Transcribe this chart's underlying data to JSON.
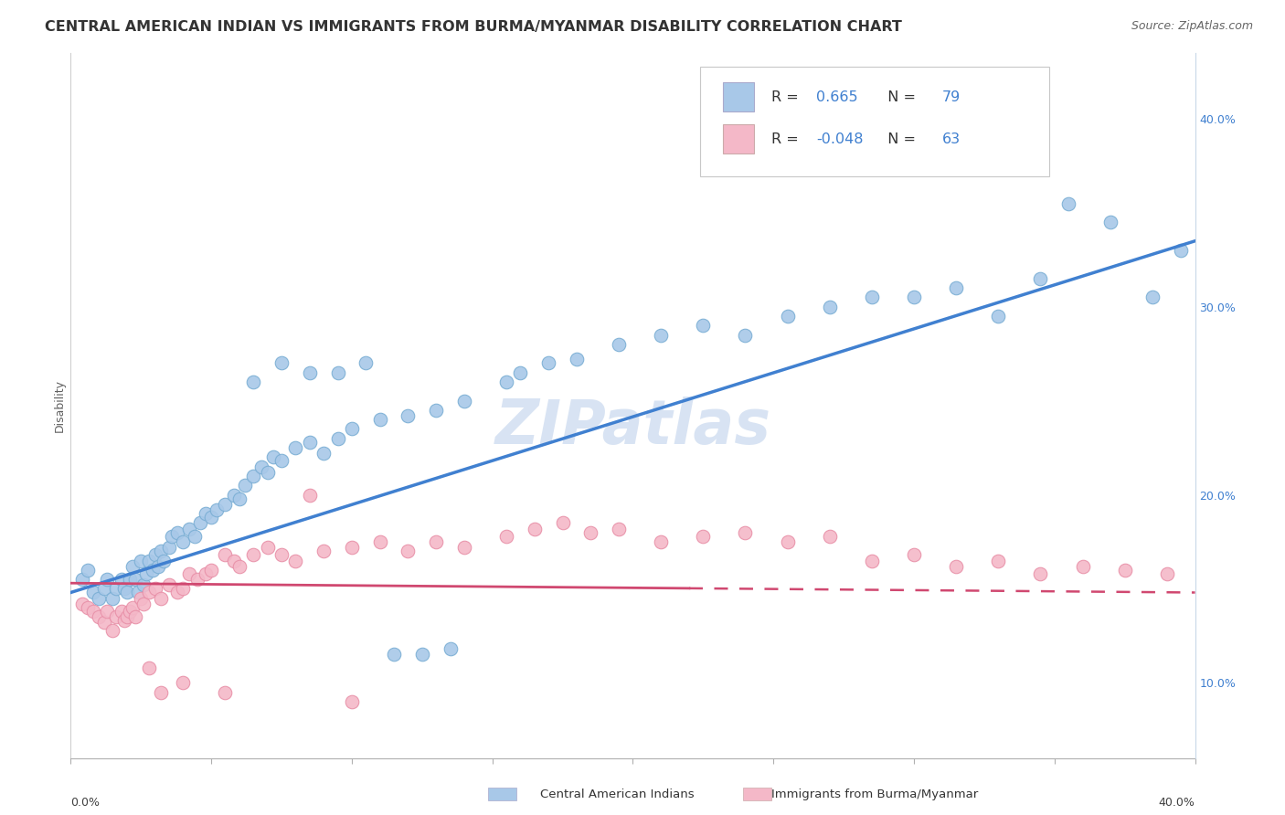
{
  "title": "CENTRAL AMERICAN INDIAN VS IMMIGRANTS FROM BURMA/MYANMAR DISABILITY CORRELATION CHART",
  "source": "Source: ZipAtlas.com",
  "ylabel": "Disability",
  "series1_color": "#a8c8e8",
  "series1_edge": "#7aaed4",
  "series2_color": "#f4b8c8",
  "series2_edge": "#e890a8",
  "trend1_color": "#4080d0",
  "trend2_color": "#d04870",
  "watermark_text": "ZIPatlas",
  "watermark_color": "#c8d8ee",
  "R1": 0.665,
  "N1": 79,
  "R2": -0.048,
  "N2": 63,
  "xmin": 0.0,
  "xmax": 0.4,
  "ymin": 0.06,
  "ymax": 0.435,
  "ytick_vals": [
    0.1,
    0.2,
    0.3,
    0.4
  ],
  "ytick_labels": [
    "10.0%",
    "20.0%",
    "30.0%",
    "40.0%"
  ],
  "xtick_vals": [
    0.0,
    0.05,
    0.1,
    0.15,
    0.2,
    0.25,
    0.3,
    0.35,
    0.4
  ],
  "background_color": "#ffffff",
  "grid_color": "#c8d8e8",
  "title_fontsize": 11.5,
  "source_fontsize": 9,
  "axis_label_fontsize": 9,
  "legend_fontsize": 12,
  "watermark_fontsize": 48,
  "legend_text_color": "#333333",
  "legend_value_color": "#4080d0",
  "blue_points_x": [
    0.004,
    0.006,
    0.008,
    0.01,
    0.012,
    0.013,
    0.015,
    0.016,
    0.018,
    0.019,
    0.02,
    0.021,
    0.022,
    0.023,
    0.024,
    0.025,
    0.026,
    0.027,
    0.028,
    0.029,
    0.03,
    0.031,
    0.032,
    0.033,
    0.035,
    0.036,
    0.038,
    0.04,
    0.042,
    0.044,
    0.046,
    0.048,
    0.05,
    0.052,
    0.055,
    0.058,
    0.06,
    0.062,
    0.065,
    0.068,
    0.07,
    0.072,
    0.075,
    0.08,
    0.085,
    0.09,
    0.095,
    0.1,
    0.11,
    0.12,
    0.13,
    0.14,
    0.155,
    0.16,
    0.17,
    0.18,
    0.195,
    0.21,
    0.225,
    0.24,
    0.255,
    0.27,
    0.285,
    0.3,
    0.315,
    0.33,
    0.345,
    0.355,
    0.37,
    0.385,
    0.395,
    0.065,
    0.075,
    0.085,
    0.095,
    0.105,
    0.115,
    0.125,
    0.135
  ],
  "blue_points_y": [
    0.155,
    0.16,
    0.148,
    0.145,
    0.15,
    0.155,
    0.145,
    0.15,
    0.155,
    0.15,
    0.148,
    0.155,
    0.162,
    0.155,
    0.148,
    0.165,
    0.152,
    0.158,
    0.165,
    0.16,
    0.168,
    0.162,
    0.17,
    0.165,
    0.172,
    0.178,
    0.18,
    0.175,
    0.182,
    0.178,
    0.185,
    0.19,
    0.188,
    0.192,
    0.195,
    0.2,
    0.198,
    0.205,
    0.21,
    0.215,
    0.212,
    0.22,
    0.218,
    0.225,
    0.228,
    0.222,
    0.23,
    0.235,
    0.24,
    0.242,
    0.245,
    0.25,
    0.26,
    0.265,
    0.27,
    0.272,
    0.28,
    0.285,
    0.29,
    0.285,
    0.295,
    0.3,
    0.305,
    0.305,
    0.31,
    0.295,
    0.315,
    0.355,
    0.345,
    0.305,
    0.33,
    0.26,
    0.27,
    0.265,
    0.265,
    0.27,
    0.115,
    0.115,
    0.118
  ],
  "pink_points_x": [
    0.004,
    0.006,
    0.008,
    0.01,
    0.012,
    0.013,
    0.015,
    0.016,
    0.018,
    0.019,
    0.02,
    0.021,
    0.022,
    0.023,
    0.025,
    0.026,
    0.028,
    0.03,
    0.032,
    0.035,
    0.038,
    0.04,
    0.042,
    0.045,
    0.048,
    0.05,
    0.055,
    0.058,
    0.06,
    0.065,
    0.07,
    0.075,
    0.08,
    0.09,
    0.1,
    0.11,
    0.12,
    0.13,
    0.14,
    0.155,
    0.165,
    0.175,
    0.185,
    0.195,
    0.21,
    0.225,
    0.24,
    0.255,
    0.27,
    0.285,
    0.3,
    0.315,
    0.33,
    0.345,
    0.36,
    0.375,
    0.39,
    0.028,
    0.032,
    0.04,
    0.055,
    0.085,
    0.1
  ],
  "pink_points_y": [
    0.142,
    0.14,
    0.138,
    0.135,
    0.132,
    0.138,
    0.128,
    0.135,
    0.138,
    0.133,
    0.135,
    0.138,
    0.14,
    0.135,
    0.145,
    0.142,
    0.148,
    0.15,
    0.145,
    0.152,
    0.148,
    0.15,
    0.158,
    0.155,
    0.158,
    0.16,
    0.168,
    0.165,
    0.162,
    0.168,
    0.172,
    0.168,
    0.165,
    0.17,
    0.172,
    0.175,
    0.17,
    0.175,
    0.172,
    0.178,
    0.182,
    0.185,
    0.18,
    0.182,
    0.175,
    0.178,
    0.18,
    0.175,
    0.178,
    0.165,
    0.168,
    0.162,
    0.165,
    0.158,
    0.162,
    0.16,
    0.158,
    0.108,
    0.095,
    0.1,
    0.095,
    0.2,
    0.09
  ]
}
